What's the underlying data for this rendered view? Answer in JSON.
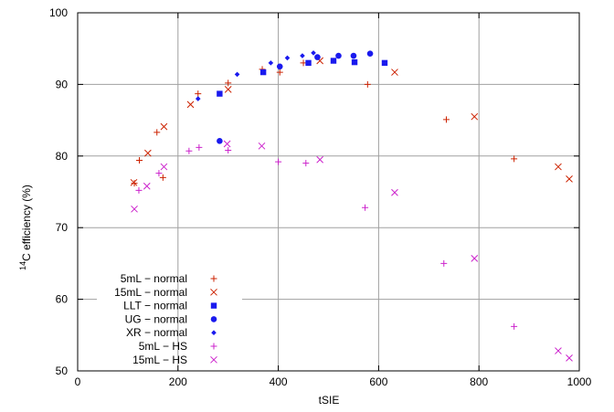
{
  "chart_data": {
    "type": "scatter",
    "xlabel": "tSIE",
    "ylabel_prefix": "14",
    "ylabel": "C efficiency (%)",
    "xlim": [
      0,
      1000
    ],
    "ylim": [
      50,
      100
    ],
    "xticks": [
      0,
      200,
      400,
      600,
      800,
      1000
    ],
    "yticks": [
      50,
      60,
      70,
      80,
      90,
      100
    ],
    "grid": true,
    "legend_position": "bottom-left",
    "series": [
      {
        "name": "5mL − normal",
        "marker": "plus",
        "color": "#cc2200",
        "points": [
          [
            113,
            76.2
          ],
          [
            123,
            79.4
          ],
          [
            158,
            83.3
          ],
          [
            170,
            77.0
          ],
          [
            240,
            88.7
          ],
          [
            300,
            90.2
          ],
          [
            368,
            92.1
          ],
          [
            403,
            91.7
          ],
          [
            450,
            93.0
          ],
          [
            578,
            90.0
          ],
          [
            735,
            85.1
          ],
          [
            870,
            79.6
          ]
        ]
      },
      {
        "name": "15mL − normal",
        "marker": "cross",
        "color": "#cc2200",
        "points": [
          [
            112,
            76.3
          ],
          [
            140,
            80.4
          ],
          [
            172,
            84.1
          ],
          [
            225,
            87.2
          ],
          [
            300,
            89.3
          ],
          [
            483,
            93.3
          ],
          [
            632,
            91.7
          ],
          [
            791,
            85.5
          ],
          [
            958,
            78.5
          ],
          [
            980,
            76.8
          ]
        ]
      },
      {
        "name": "LLT − normal",
        "marker": "square",
        "color": "#1a1aee",
        "points": [
          [
            283,
            88.7
          ],
          [
            370,
            91.7
          ],
          [
            460,
            93.0
          ],
          [
            510,
            93.3
          ],
          [
            552,
            93.1
          ],
          [
            612,
            93.0
          ]
        ]
      },
      {
        "name": "UG − normal",
        "marker": "circle",
        "color": "#1a1aee",
        "points": [
          [
            283,
            82.1
          ],
          [
            403,
            92.5
          ],
          [
            478,
            93.8
          ],
          [
            520,
            94.0
          ],
          [
            550,
            94.0
          ],
          [
            583,
            94.3
          ]
        ]
      },
      {
        "name": "XR − normal",
        "marker": "diamond",
        "color": "#1a1aee",
        "points": [
          [
            240,
            88.0
          ],
          [
            318,
            91.4
          ],
          [
            385,
            93.0
          ],
          [
            418,
            93.7
          ],
          [
            448,
            94.0
          ],
          [
            470,
            94.4
          ]
        ]
      },
      {
        "name": "5mL − HS",
        "marker": "plus",
        "color": "#cc22cc",
        "points": [
          [
            122,
            75.2
          ],
          [
            162,
            77.6
          ],
          [
            222,
            80.7
          ],
          [
            242,
            81.2
          ],
          [
            300,
            80.8
          ],
          [
            400,
            79.2
          ],
          [
            455,
            79.0
          ],
          [
            573,
            72.8
          ],
          [
            730,
            65.0
          ],
          [
            870,
            56.2
          ]
        ]
      },
      {
        "name": "15mL − HS",
        "marker": "cross",
        "color": "#cc22cc",
        "points": [
          [
            113,
            72.6
          ],
          [
            138,
            75.8
          ],
          [
            172,
            78.5
          ],
          [
            298,
            81.7
          ],
          [
            367,
            81.4
          ],
          [
            483,
            79.5
          ],
          [
            632,
            74.9
          ],
          [
            791,
            65.7
          ],
          [
            958,
            52.8
          ],
          [
            980,
            51.8
          ]
        ]
      }
    ]
  }
}
